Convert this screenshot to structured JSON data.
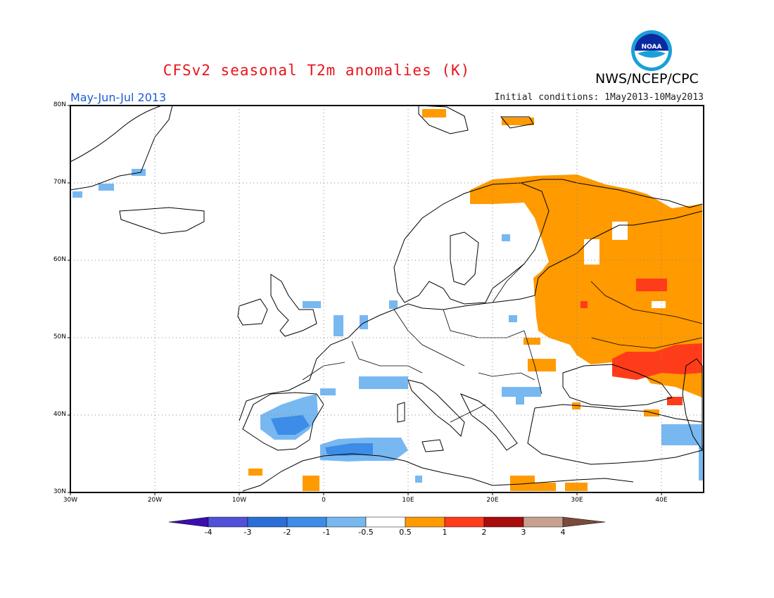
{
  "header": {
    "title": "CFSv2 seasonal T2m anomalies (K)",
    "org": "NWS/NCEP/CPC",
    "logo_icon": "noaa-logo-icon",
    "logo_text": "NOAA",
    "period": "May-Jun-Jul 2013",
    "initial_conditions": "Initial conditions: 1May2013-10May2013"
  },
  "map": {
    "lon_range": [
      -30,
      45
    ],
    "lat_range": [
      30,
      80
    ],
    "grid": true,
    "lat_labels": [
      "80N",
      "70N",
      "60N",
      "50N",
      "40N",
      "30N"
    ],
    "lon_labels": [
      "30W",
      "20W",
      "10W",
      "0",
      "10E",
      "20E",
      "30E",
      "40E"
    ],
    "anomaly_regions": [
      {
        "label": "western Russia / Scandinavia",
        "value": 0.75
      },
      {
        "label": "southern Russia / Black Sea",
        "value": 1.5
      },
      {
        "label": "Iberia",
        "value": -0.75
      },
      {
        "label": "northern Algeria",
        "value": -0.75
      },
      {
        "label": "Svalbard",
        "value": 0.75
      }
    ]
  },
  "colorbar": {
    "labels": [
      "-4",
      "-3",
      "-2",
      "-1",
      "-0.5",
      "0.5",
      "1",
      "2",
      "3",
      "4"
    ],
    "colors": [
      "#3a0fb0",
      "#5050d8",
      "#2a6fd8",
      "#3c8ce8",
      "#78b8f0",
      "#ffffff",
      "#ff9a00",
      "#ff3c1a",
      "#a80c0c",
      "#c8a090",
      "#7a4a3a"
    ]
  }
}
